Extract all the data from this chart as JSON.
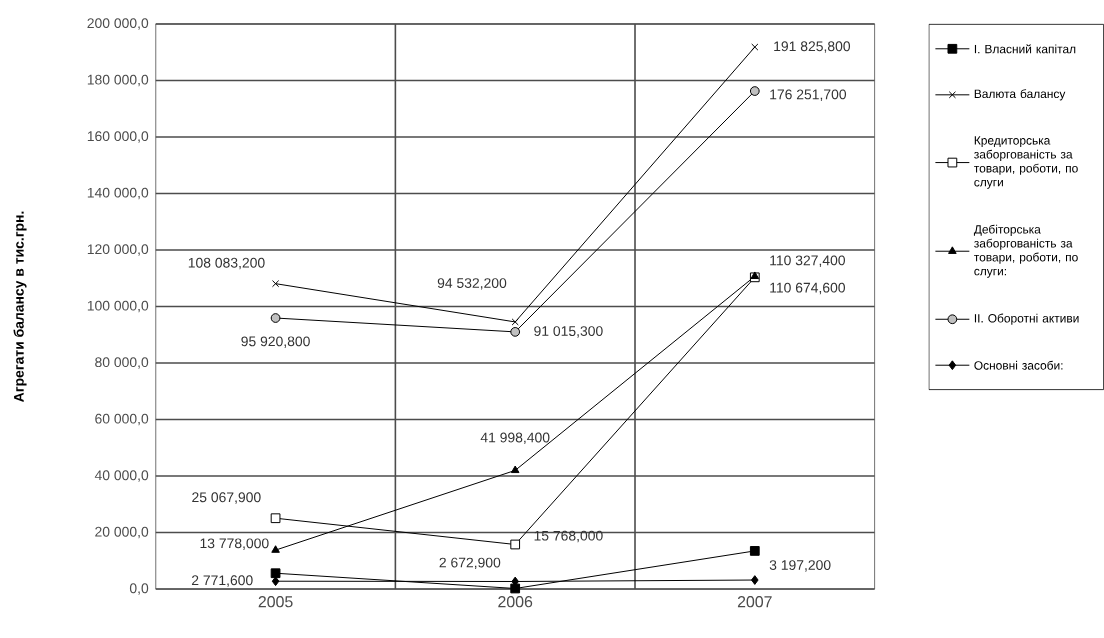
{
  "chart_data": {
    "type": "line",
    "ylabel": "Агрегати балансу в тис.грн.",
    "categories": [
      "2005",
      "2006",
      "2007"
    ],
    "ylim": [
      0,
      200000
    ],
    "yticks": [
      {
        "value": 0,
        "label": "0,0"
      },
      {
        "value": 20000,
        "label": "20 000,0"
      },
      {
        "value": 40000,
        "label": "40 000,0"
      },
      {
        "value": 60000,
        "label": "60 000,0"
      },
      {
        "value": 80000,
        "label": "80 000,0"
      },
      {
        "value": 100000,
        "label": "100 000,0"
      },
      {
        "value": 120000,
        "label": "120 000,0"
      },
      {
        "value": 140000,
        "label": "140 000,0"
      },
      {
        "value": 160000,
        "label": "160 000,0"
      },
      {
        "value": 180000,
        "label": "180 000,0"
      },
      {
        "value": 200000,
        "label": "200 000,0"
      }
    ],
    "grid": true,
    "legend": "right",
    "series": [
      {
        "name": "І. Власний капітал",
        "color": "#000000",
        "marker": "square",
        "values": [
          5600,
          200,
          13500
        ]
      },
      {
        "name": "Валюта балансу",
        "color": "#000000",
        "marker": "cross",
        "values": [
          108083.2,
          94532.2,
          191825.8
        ],
        "value_labels": [
          "108 083,200",
          "94 532,200",
          "191 825,800"
        ]
      },
      {
        "name": "Кредиторська заборгованість за товари, роботи, по слуги",
        "color": "#ffffff",
        "marker": "square",
        "values": [
          25067.9,
          15768.0,
          110327.4
        ],
        "value_labels": [
          "25 067,900",
          "15 768,000",
          "110 327,400"
        ]
      },
      {
        "name": "Дебіторська заборгованість за товари, роботи, по слуги:",
        "color": "#000000",
        "marker": "triangle",
        "values": [
          13778.0,
          41998.4,
          110674.6
        ],
        "value_labels": [
          "13 778,000",
          "41 998,400",
          "110 674,600"
        ]
      },
      {
        "name": "ІІ. Оборотні активи",
        "color": "#c0c0c0",
        "marker": "circle",
        "values": [
          95920.8,
          91015.3,
          176251.7
        ],
        "value_labels": [
          "95 920,800",
          "91 015,300",
          "176 251,700"
        ]
      },
      {
        "name": "Основні засоби:",
        "color": "#000000",
        "marker": "diamond",
        "values": [
          2771.6,
          2672.9,
          3197.2
        ],
        "value_labels": [
          "2 771,600",
          "2 672,900",
          "3 197,200"
        ]
      }
    ]
  }
}
